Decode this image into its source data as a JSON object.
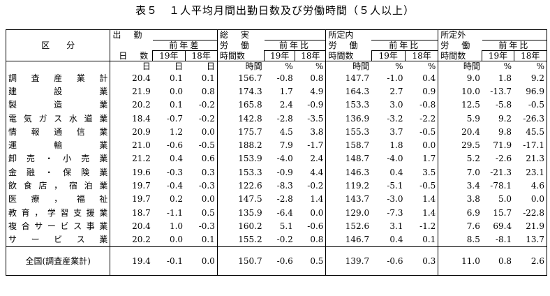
{
  "title": "表５　１人平均月間出勤日数及び労働時間（５人以上）",
  "header": {
    "kubun": "区　　分",
    "attend_top": "出　勤",
    "attend_bottom": "日　数",
    "total_top": "総　実",
    "total_mid": "労　働",
    "total_bottom": "時間数",
    "sched_top": "所定内",
    "sched_mid": "労　働",
    "sched_bottom": "時間数",
    "over_top": "所定外",
    "over_mid": "労　働",
    "over_bottom": "時間数",
    "diff_label": "前年差",
    "ratio_label": "前年比",
    "y19": "19年",
    "y18": "18年"
  },
  "units": {
    "day": "日",
    "hour": "時間",
    "pct": "%"
  },
  "rows": [
    {
      "name": "調査産業計",
      "v": [
        "20.4",
        "0.1",
        "0.1",
        "156.7",
        "-0.8",
        "0.8",
        "147.7",
        "-1.0",
        "0.4",
        "9.0",
        "1.8",
        "9.2"
      ]
    },
    {
      "name": "建設業",
      "v": [
        "21.9",
        "0.0",
        "0.8",
        "174.3",
        "1.7",
        "4.9",
        "164.3",
        "2.7",
        "0.9",
        "10.0",
        "-13.7",
        "96.9"
      ]
    },
    {
      "name": "製造業",
      "v": [
        "20.2",
        "0.1",
        "-0.2",
        "165.8",
        "2.4",
        "-0.9",
        "153.3",
        "3.0",
        "-0.8",
        "12.5",
        "-5.8",
        "-0.5"
      ]
    },
    {
      "name": "電気ガス水道業",
      "v": [
        "18.4",
        "-0.7",
        "-0.2",
        "142.8",
        "-2.8",
        "-3.5",
        "136.9",
        "-3.2",
        "-2.2",
        "5.9",
        "9.2",
        "-26.3"
      ]
    },
    {
      "name": "情報通信業",
      "v": [
        "20.9",
        "1.2",
        "0.0",
        "175.7",
        "4.5",
        "3.8",
        "155.3",
        "3.7",
        "-0.5",
        "20.4",
        "9.8",
        "45.5"
      ]
    },
    {
      "name": "運輸業",
      "v": [
        "21.0",
        "-0.6",
        "-0.5",
        "188.2",
        "7.9",
        "-1.7",
        "158.7",
        "1.8",
        "0.0",
        "29.5",
        "71.9",
        "-17.1"
      ]
    },
    {
      "name": "卸売・小売業",
      "v": [
        "21.2",
        "0.4",
        "0.6",
        "153.9",
        "-4.0",
        "2.4",
        "148.7",
        "-4.0",
        "1.7",
        "5.2",
        "-2.6",
        "21.3"
      ]
    },
    {
      "name": "金融・保険業",
      "v": [
        "19.6",
        "-0.3",
        "0.3",
        "153.3",
        "-0.9",
        "4.4",
        "146.3",
        "0.4",
        "3.5",
        "7.0",
        "-21.3",
        "23.1"
      ]
    },
    {
      "name": "飲食店，宿泊業",
      "v": [
        "19.7",
        "-0.4",
        "-0.3",
        "122.6",
        "-8.3",
        "-0.2",
        "119.2",
        "-5.1",
        "-0.5",
        "3.4",
        "-78.1",
        "4.6"
      ]
    },
    {
      "name": "医療，福祉",
      "v": [
        "19.7",
        "0.2",
        "0.0",
        "147.5",
        "-2.8",
        "1.4",
        "143.7",
        "-3.0",
        "1.4",
        "3.8",
        "5.0",
        "0.0"
      ]
    },
    {
      "name": "教育，学習支援業",
      "v": [
        "18.7",
        "-1.1",
        "0.5",
        "135.9",
        "-6.4",
        "0.0",
        "129.0",
        "-7.3",
        "1.4",
        "6.9",
        "15.7",
        "-22.8"
      ]
    },
    {
      "name": "複合サービス事業",
      "v": [
        "20.4",
        "1.0",
        "-0.3",
        "160.2",
        "5.1",
        "-0.6",
        "152.6",
        "3.1",
        "-1.2",
        "7.6",
        "69.4",
        "21.9"
      ]
    },
    {
      "name": "サービス業",
      "v": [
        "20.2",
        "0.0",
        "0.1",
        "155.2",
        "-0.2",
        "0.8",
        "146.7",
        "0.4",
        "0.1",
        "8.5",
        "-8.1",
        "13.7"
      ]
    }
  ],
  "total": {
    "name": "全国(調査産業計)",
    "v": [
      "19.4",
      "-0.1",
      "0.0",
      "150.7",
      "-0.6",
      "0.5",
      "139.7",
      "-0.6",
      "0.3",
      "11.0",
      "0.8",
      "2.6"
    ]
  }
}
